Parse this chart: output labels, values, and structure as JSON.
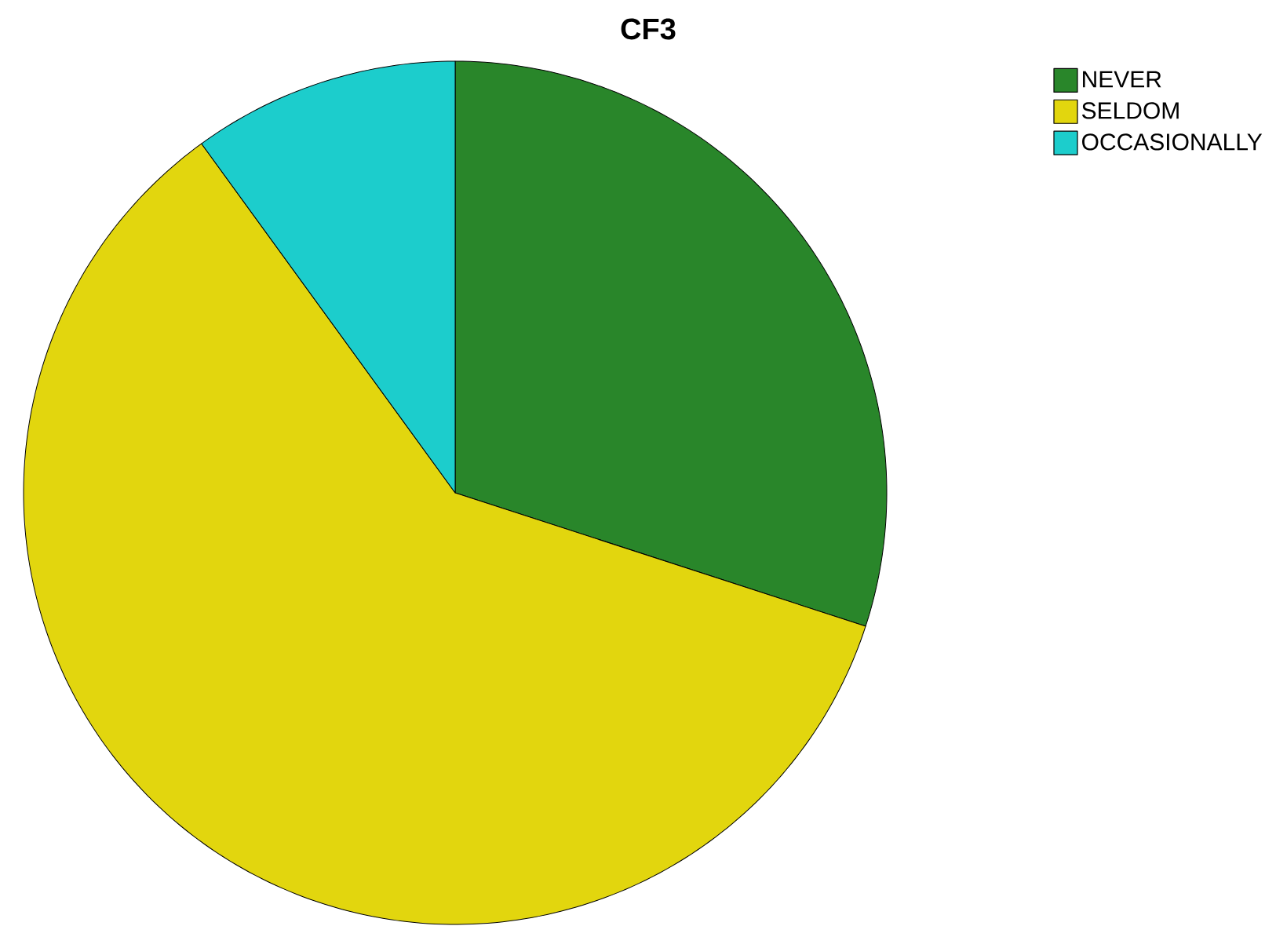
{
  "chart_data": {
    "type": "pie",
    "title": "CF3",
    "categories": [
      "NEVER",
      "SELDOM",
      "OCCASIONALLY"
    ],
    "values": [
      30,
      60,
      10
    ],
    "colors": [
      "#29862a",
      "#e2d60e",
      "#1ccdcc"
    ],
    "legend": "top right"
  }
}
